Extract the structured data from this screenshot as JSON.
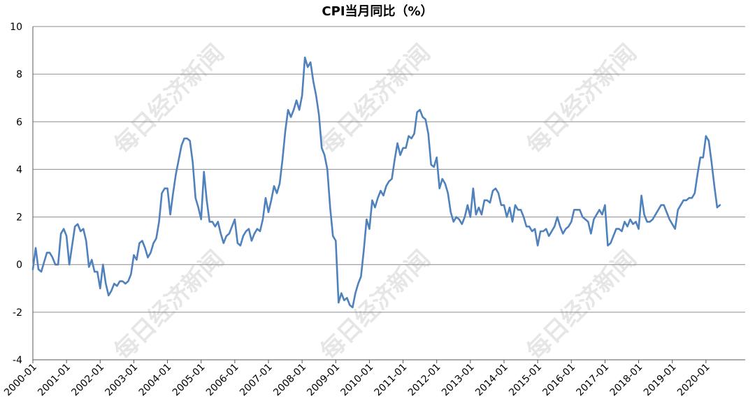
{
  "chart_data": {
    "type": "line",
    "title": "CPI当月同比（%）",
    "xlabel": "",
    "ylabel": "",
    "ylim": [
      -4,
      10
    ],
    "yticks": [
      -4,
      -2,
      0,
      2,
      4,
      6,
      8,
      10
    ],
    "x_start": "2000-01",
    "x_tick_labels": [
      "2000-01",
      "2001-01",
      "2002-01",
      "2003-01",
      "2004-01",
      "2005-01",
      "2006-01",
      "2007-01",
      "2008-01",
      "2009-01",
      "2010-01",
      "2011-01",
      "2012-01",
      "2013-01",
      "2014-01",
      "2015-01",
      "2016-01",
      "2017-01",
      "2018-01",
      "2019-01",
      "2020-01"
    ],
    "grid": true,
    "legend": "none",
    "line_color": "#4f81bd",
    "watermark": "每日经济新闻",
    "series": [
      {
        "values": [
          -0.2,
          0.7,
          -0.2,
          -0.3,
          0.1,
          0.5,
          0.5,
          0.3,
          0.0,
          0.0,
          1.3,
          1.5,
          1.2,
          0.0,
          0.8,
          1.6,
          1.7,
          1.4,
          1.5,
          1.0,
          -0.1,
          0.2,
          -0.3,
          -0.3,
          -1.0,
          0.0,
          -0.8,
          -1.3,
          -1.1,
          -0.8,
          -0.9,
          -0.7,
          -0.7,
          -0.8,
          -0.7,
          -0.4,
          0.4,
          0.2,
          0.9,
          1.0,
          0.7,
          0.3,
          0.5,
          0.9,
          1.1,
          1.8,
          3.0,
          3.2,
          3.2,
          2.1,
          3.0,
          3.8,
          4.4,
          5.0,
          5.3,
          5.3,
          5.2,
          4.3,
          2.8,
          2.4,
          1.9,
          3.9,
          2.7,
          1.8,
          1.8,
          1.6,
          1.8,
          1.3,
          0.9,
          1.2,
          1.3,
          1.6,
          1.9,
          0.9,
          0.8,
          1.2,
          1.4,
          1.5,
          1.0,
          1.3,
          1.5,
          1.4,
          1.9,
          2.8,
          2.2,
          2.7,
          3.3,
          3.0,
          3.4,
          4.4,
          5.6,
          6.5,
          6.2,
          6.5,
          6.9,
          6.5,
          7.1,
          8.7,
          8.3,
          8.5,
          7.7,
          7.1,
          6.3,
          4.9,
          4.6,
          4.0,
          2.4,
          1.2,
          1.0,
          -1.6,
          -1.2,
          -1.5,
          -1.4,
          -1.7,
          -1.8,
          -1.2,
          -0.8,
          -0.5,
          0.6,
          1.9,
          1.5,
          2.7,
          2.4,
          2.8,
          3.1,
          2.9,
          3.3,
          3.5,
          3.6,
          4.4,
          5.1,
          4.6,
          4.9,
          4.9,
          5.4,
          5.3,
          5.5,
          6.4,
          6.5,
          6.2,
          6.1,
          5.5,
          4.2,
          4.1,
          4.5,
          3.2,
          3.6,
          3.4,
          3.0,
          2.2,
          1.8,
          2.0,
          1.9,
          1.7,
          2.0,
          2.5,
          2.0,
          3.2,
          2.1,
          2.4,
          2.1,
          2.7,
          2.7,
          2.6,
          3.1,
          3.2,
          3.0,
          2.5,
          2.5,
          2.0,
          2.4,
          1.8,
          2.5,
          2.3,
          2.3,
          2.0,
          1.6,
          1.6,
          1.4,
          1.5,
          0.8,
          1.4,
          1.4,
          1.5,
          1.2,
          1.4,
          1.6,
          2.0,
          1.6,
          1.3,
          1.5,
          1.6,
          1.8,
          2.3,
          2.3,
          2.3,
          2.0,
          1.9,
          1.8,
          1.3,
          1.9,
          2.1,
          2.3,
          2.1,
          2.5,
          0.8,
          0.9,
          1.2,
          1.5,
          1.5,
          1.4,
          1.8,
          1.6,
          1.9,
          1.7,
          1.8,
          1.5,
          2.9,
          2.1,
          1.8,
          1.8,
          1.9,
          2.1,
          2.3,
          2.5,
          2.5,
          2.2,
          1.9,
          1.7,
          1.5,
          2.3,
          2.5,
          2.7,
          2.7,
          2.8,
          2.8,
          3.0,
          3.8,
          4.5,
          4.5,
          5.4,
          5.2,
          4.3,
          3.3,
          2.4,
          2.5
        ]
      }
    ]
  }
}
